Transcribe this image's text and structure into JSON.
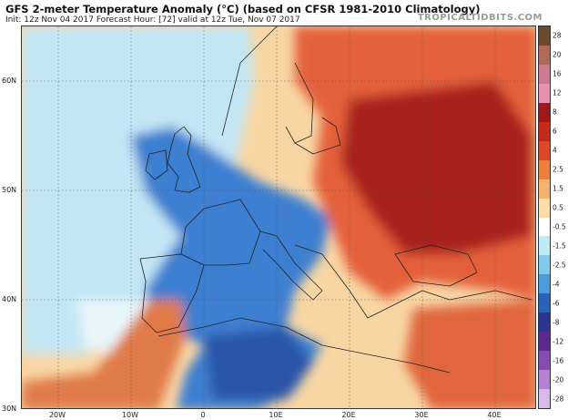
{
  "header": {
    "title": "GFS 2-meter Temperature Anomaly (°C) (based on CFSR 1981-2010 Climatology)",
    "subtitle": "Init: 12z Nov 04 2017   Forecast Hour: [72]   valid at 12z Tue, Nov 07 2017",
    "brand": "TROPICALTIDBITS.COM"
  },
  "axes": {
    "lat_labels": [
      "60N",
      "50N",
      "40N",
      "30N"
    ],
    "lon_labels": [
      "20W",
      "10W",
      "0",
      "10E",
      "20E",
      "30E",
      "40E"
    ]
  },
  "colorbar": {
    "labels": [
      "28",
      "20",
      "16",
      "12",
      "8",
      "6",
      "4",
      "2.5",
      "1.5",
      "0.5",
      "-0.5",
      "-1.5",
      "-2.5",
      "-4",
      "-6",
      "-8",
      "-12",
      "-16",
      "-20",
      "-28"
    ],
    "colors": [
      "#6b4a2e",
      "#b06a5a",
      "#cc7a8e",
      "#e890b0",
      "#9e1a1a",
      "#c62a1a",
      "#de4a26",
      "#ec7e3e",
      "#f6b070",
      "#fcdcab",
      "#ffffff",
      "#bfeaf6",
      "#7fcbe8",
      "#4b9cda",
      "#2a62b8",
      "#2a3590",
      "#5a2a8e",
      "#8a4ab4",
      "#b482d2",
      "#d8b8e8"
    ]
  },
  "map": {
    "colors": {
      "sea_warm": "#f8d6a4",
      "sea_cool": "#c2e6f4",
      "cold": "#3d7fd0",
      "very_cold": "#2a55a8",
      "warm": "#e4603a",
      "hot": "#a8221a",
      "coast": "#222222"
    }
  }
}
